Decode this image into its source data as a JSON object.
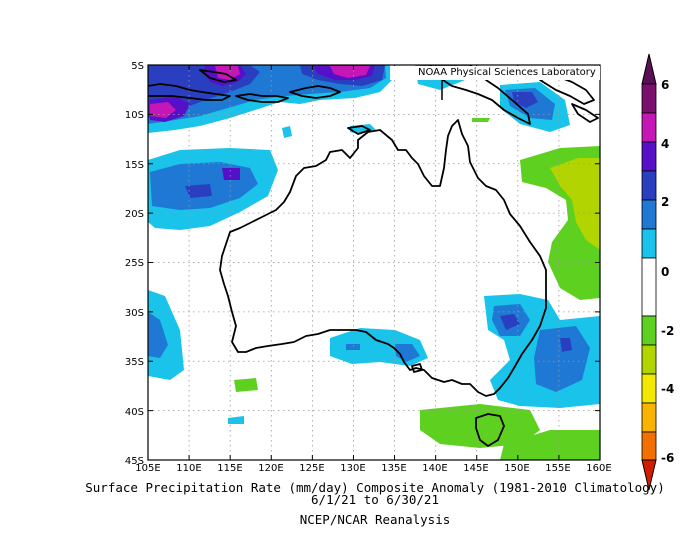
{
  "map": {
    "credit": "NOAA Physical Sciences Laboratory",
    "lon_ticks": [
      "105E",
      "110E",
      "115E",
      "120E",
      "125E",
      "130E",
      "135E",
      "140E",
      "145E",
      "150E",
      "155E",
      "160E"
    ],
    "lat_ticks": [
      "5S",
      "10S",
      "15S",
      "20S",
      "25S",
      "30S",
      "35S",
      "40S",
      "45S"
    ],
    "region": {
      "lon_min": 105,
      "lon_max": 160,
      "lat_min": -45,
      "lat_max": -5
    }
  },
  "colorbar": {
    "labels": [
      "6",
      "4",
      "2",
      "0",
      "-2",
      "-4",
      "-6"
    ],
    "colors": {
      "c6": "#7a0f6e",
      "c5": "#c517b5",
      "c4": "#5510c8",
      "c3": "#2a3fc0",
      "c2": "#1e78d4",
      "c1": "#19c3ea",
      "c0": "#ffffff",
      "n1": "#5ed020",
      "n2": "#b2d400",
      "n3": "#f2e800",
      "n4": "#f7b400",
      "n5": "#f27000",
      "n6": "#d21e00"
    }
  },
  "caption": {
    "line1": "Surface Precipitation Rate (mm/day) Composite Anomaly (1981-2010 Climatology)",
    "line2": "6/1/21  to 6/30/21",
    "line3": "NCEP/NCAR Reanalysis"
  }
}
